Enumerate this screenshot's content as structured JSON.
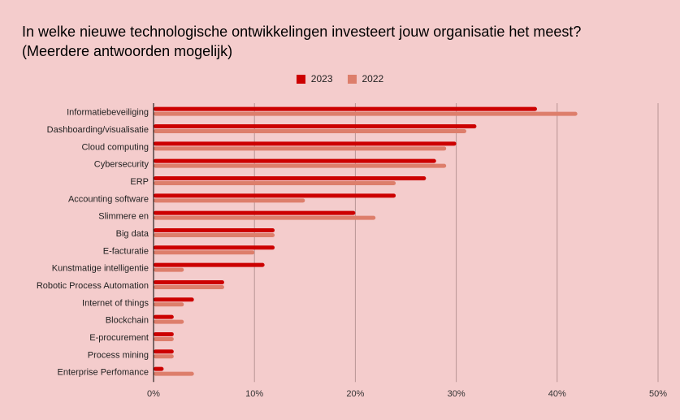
{
  "chart_data": {
    "type": "bar",
    "orientation": "horizontal",
    "title_line1": "In welke nieuwe technologische ontwikkelingen investeert jouw organisatie het meest?",
    "title_line2": "(Meerdere antwoorden mogelijk)",
    "categories": [
      "Informatiebeveiliging",
      "Dashboarding/visualisatie",
      "Cloud computing",
      "Cybersecurity",
      "ERP",
      "Accounting software",
      "Slimmere en",
      "Big data",
      "E-facturatie",
      "Kunstmatige intelligentie",
      "Robotic Process Automation",
      "Internet of things",
      "Blockchain",
      "E-procurement",
      "Process mining",
      "Enterprise Perfomance"
    ],
    "series": [
      {
        "name": "2023",
        "color": "#cc0000",
        "values": [
          38,
          32,
          30,
          28,
          27,
          24,
          20,
          12,
          12,
          11,
          7,
          4,
          2,
          2,
          2,
          1
        ]
      },
      {
        "name": "2022",
        "color": "#dd7e6b",
        "values": [
          42,
          31,
          29,
          29,
          24,
          15,
          22,
          12,
          10,
          3,
          7,
          3,
          3,
          2,
          2,
          4
        ]
      }
    ],
    "xlim": [
      0,
      50
    ],
    "x_ticks": [
      "0%",
      "10%",
      "20%",
      "30%",
      "40%",
      "50%"
    ],
    "grid": true,
    "legend_position": "top",
    "background": "#f4cccc"
  }
}
